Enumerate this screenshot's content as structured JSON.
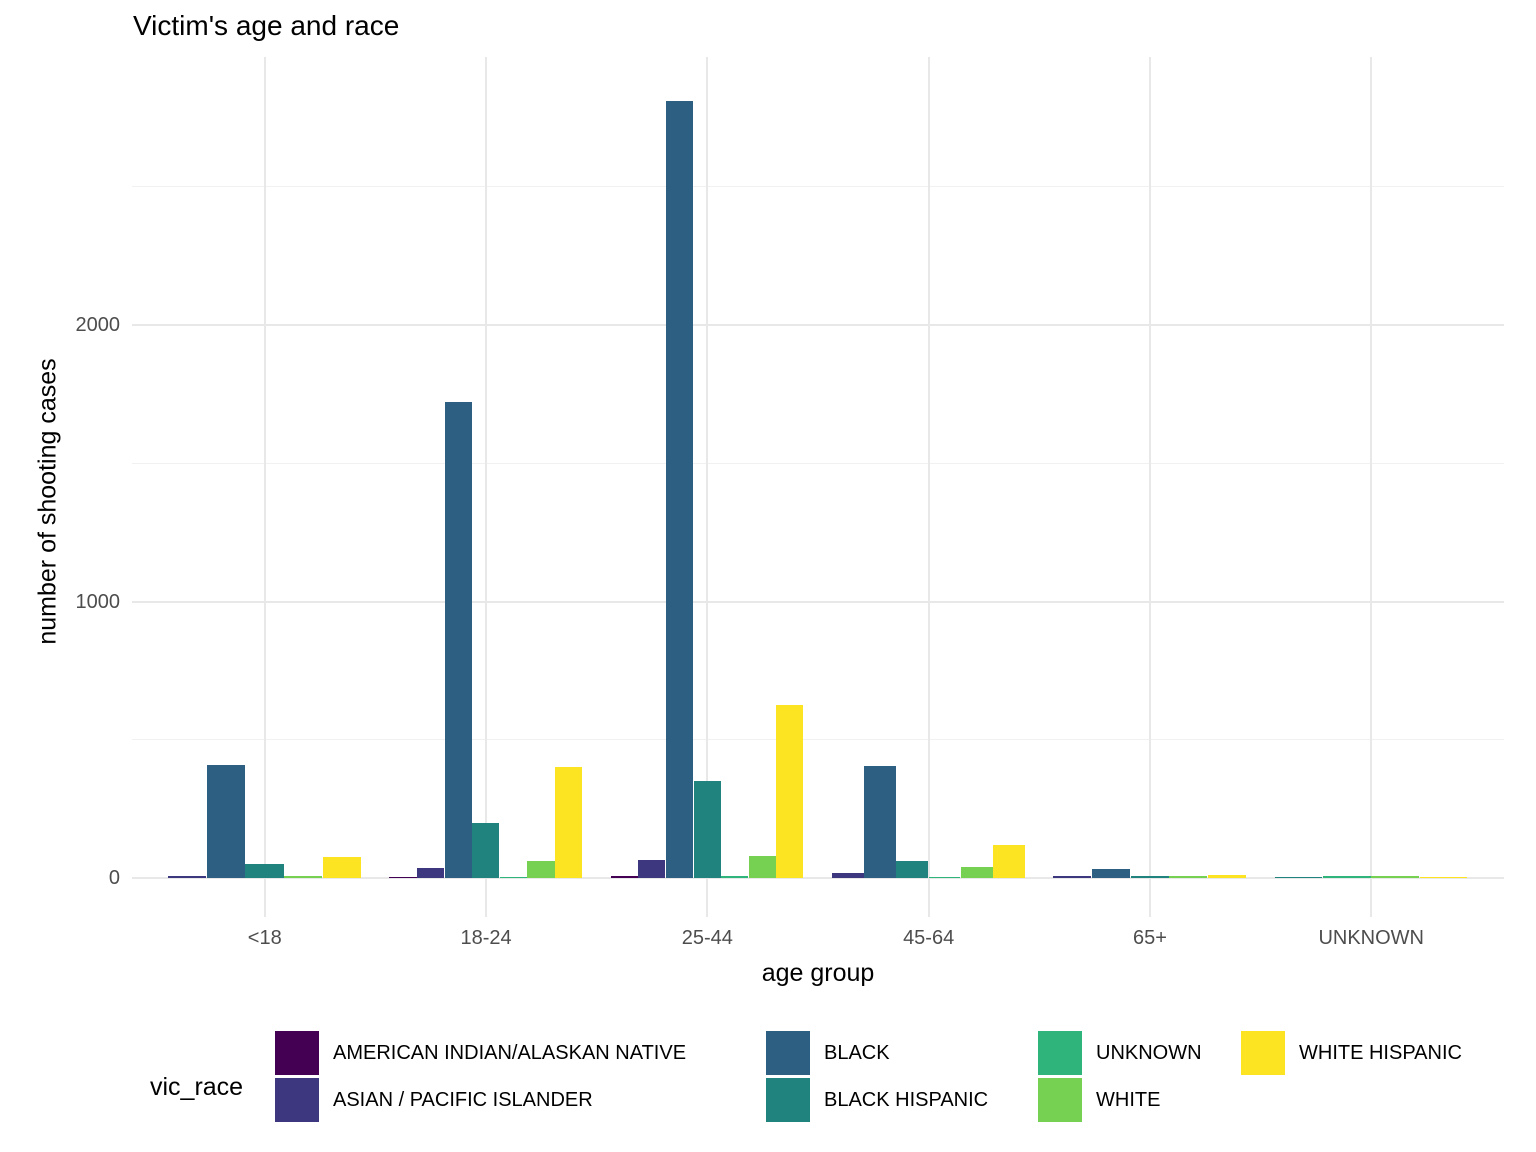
{
  "title": "Victim's age and race",
  "axes": {
    "x_label": "age group",
    "y_label": "number of shooting cases",
    "y_major_ticks": [
      0,
      1000,
      2000
    ],
    "y_minor_ticks": [
      500,
      1500,
      2500
    ],
    "x_tick_labels": [
      "<18",
      "18-24",
      "25-44",
      "45-64",
      "65+",
      "UNKNOWN"
    ]
  },
  "legend": {
    "title": "vic_race",
    "items": [
      "AMERICAN INDIAN/ALASKAN NATIVE",
      "ASIAN / PACIFIC ISLANDER",
      "BLACK",
      "BLACK HISPANIC",
      "UNKNOWN",
      "WHITE",
      "WHITE HISPANIC"
    ]
  },
  "colors": {
    "american_indian": "#440154",
    "asian_pacific": "#3d3780",
    "black": "#2d5f82",
    "black_hispanic": "#21837d",
    "unknown": "#2fb47c",
    "white": "#76d153",
    "white_hispanic": "#fce422",
    "grid_major": "#e8e8e8",
    "grid_minor": "#f1f1f1",
    "tick_text": "#4d4d4d"
  },
  "chart_data": {
    "type": "bar",
    "subtype": "grouped-dodge",
    "title": "Victim's age and race",
    "xlabel": "age group",
    "ylabel": "number of shooting cases",
    "categories": [
      "<18",
      "18-24",
      "25-44",
      "45-64",
      "65+",
      "UNKNOWN"
    ],
    "series": [
      {
        "name": "AMERICAN INDIAN/ALASKAN NATIVE",
        "color": "#440154",
        "values": [
          0,
          4,
          6,
          0,
          0,
          0
        ]
      },
      {
        "name": "ASIAN / PACIFIC ISLANDER",
        "color": "#3d3780",
        "values": [
          6,
          35,
          65,
          18,
          6,
          0
        ]
      },
      {
        "name": "BLACK",
        "color": "#2d5f82",
        "values": [
          410,
          1720,
          2810,
          404,
          33,
          0
        ]
      },
      {
        "name": "BLACK HISPANIC",
        "color": "#21837d",
        "values": [
          52,
          200,
          350,
          61,
          6,
          4
        ]
      },
      {
        "name": "UNKNOWN",
        "color": "#2fb47c",
        "values": [
          0,
          3,
          7,
          5,
          0,
          8
        ]
      },
      {
        "name": "WHITE",
        "color": "#76d153",
        "values": [
          8,
          60,
          80,
          40,
          6,
          6
        ]
      },
      {
        "name": "WHITE HISPANIC",
        "color": "#fce422",
        "values": [
          75,
          400,
          625,
          121,
          11,
          3
        ]
      }
    ],
    "ylim": [
      0,
      2950
    ],
    "grid": true,
    "legend_position": "bottom",
    "note": "zero-value bars are absent; remaining bars in a group widen to fill the dodge width"
  }
}
